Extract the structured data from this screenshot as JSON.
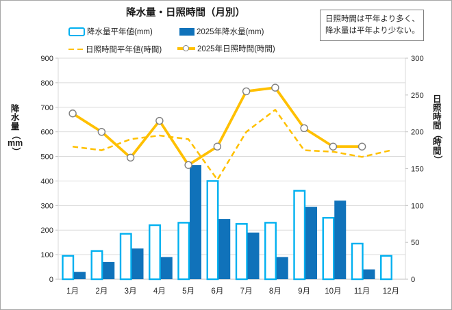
{
  "title": "降水量・日照時間（月別）",
  "note": {
    "line1": "日照時間は平年より多く、",
    "line2": "降水量は平年より少ない。"
  },
  "colors": {
    "precip_normal_outline": "#00B0F0",
    "precip_2025_fill": "#1072BA",
    "sunshine_line": "#FFC000",
    "marker_ring": "#7F7F7F",
    "gridline": "#D9D9D9",
    "axis_line": "#BFBFBF",
    "text": "#262626"
  },
  "chart_data": {
    "type": "bar",
    "subtype": "combo-bar-line-dual-axis",
    "title": "降水量・日照時間（月別）",
    "categories": [
      "1月",
      "2月",
      "3月",
      "4月",
      "5月",
      "6月",
      "7月",
      "8月",
      "9月",
      "10月",
      "11月",
      "12月"
    ],
    "series": [
      {
        "name": "降水量平年値(mm)",
        "type": "bar",
        "style": "outlined",
        "axis": "left",
        "color": "#00B0F0",
        "values": [
          95,
          115,
          185,
          220,
          230,
          400,
          225,
          230,
          360,
          250,
          145,
          95
        ]
      },
      {
        "name": "2025年降水量(mm)",
        "type": "bar",
        "style": "solid",
        "axis": "left",
        "color": "#1072BA",
        "values": [
          30,
          70,
          125,
          90,
          465,
          245,
          190,
          90,
          295,
          320,
          40,
          null
        ]
      },
      {
        "name": "日照時間平年値(時間)",
        "type": "line",
        "style": "dashed",
        "axis": "right",
        "color": "#FFC000",
        "values": [
          180,
          175,
          190,
          195,
          190,
          135,
          200,
          230,
          175,
          173,
          166,
          175
        ]
      },
      {
        "name": "2025年日照時間(時間)",
        "type": "line",
        "style": "solid-circle-markers",
        "axis": "right",
        "color": "#FFC000",
        "values": [
          225,
          200,
          165,
          215,
          155,
          180,
          255,
          260,
          205,
          180,
          180,
          null
        ]
      }
    ],
    "axes": {
      "left": {
        "label": "降水量（mm）",
        "min": 0,
        "max": 900,
        "step": 100
      },
      "right": {
        "label": "日照時間（時間）",
        "min": 0,
        "max": 300,
        "step": 50
      }
    },
    "grid": true,
    "legend_position": "top"
  }
}
